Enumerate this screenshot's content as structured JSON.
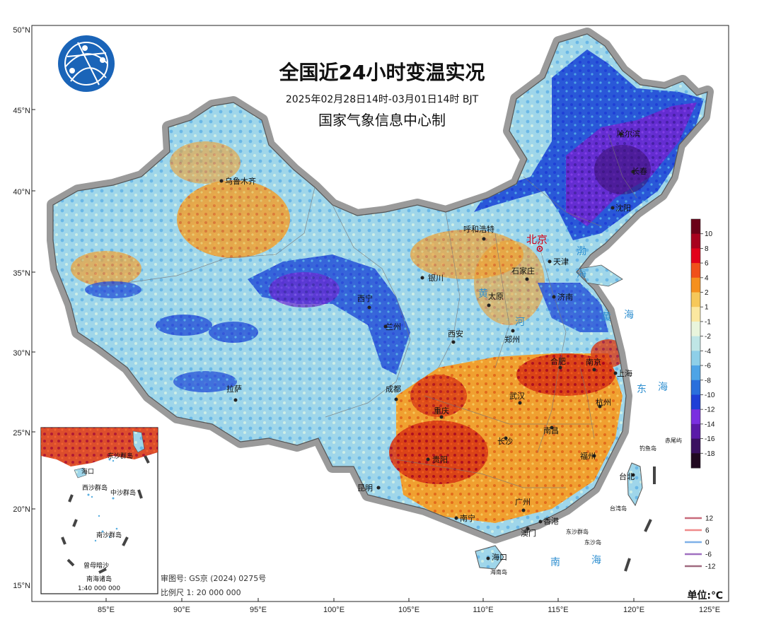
{
  "title": "全国近24小时变温实况",
  "subtitle": "2025年02月28日14时-03月01日14时 BJT",
  "maker": "国家气象信息中心制",
  "unit": "单位:℃",
  "approval": "审图号: GS京 (2024) 0275号",
  "scale": "比例尺 1: 20 000 000",
  "inset": {
    "title": "南海诸岛",
    "scale": "1:40 000 000",
    "labels": [
      "东沙群岛",
      "西沙群岛",
      "中沙群岛",
      "南沙群岛",
      "曾母暗沙",
      "海口"
    ]
  },
  "lat_labels": [
    "50°N",
    "45°N",
    "40°N",
    "35°N",
    "30°N",
    "25°N",
    "20°N",
    "15°N"
  ],
  "lon_labels": [
    "85°E",
    "90°E",
    "95°E",
    "100°E",
    "105°E",
    "110°E",
    "115°E",
    "120°E",
    "125°E"
  ],
  "capital": "北京",
  "cities": [
    "乌鲁木齐",
    "哈尔滨",
    "长春",
    "沈阳",
    "呼和浩特",
    "天津",
    "石家庄",
    "银川",
    "太原",
    "济南",
    "西宁",
    "兰州",
    "西安",
    "郑州",
    "合肥",
    "南京",
    "上海",
    "拉萨",
    "成都",
    "武汉",
    "杭州",
    "重庆",
    "南昌",
    "长沙",
    "贵阳",
    "福州",
    "台北",
    "昆明",
    "广州",
    "南宁",
    "香港",
    "澳门",
    "海口"
  ],
  "seas": [
    "渤",
    "海",
    "黄",
    "海",
    "东",
    "海",
    "南",
    "海"
  ],
  "rivers": [
    "黄",
    "河"
  ],
  "islands": [
    "钓鱼岛",
    "赤尾屿",
    "台湾岛",
    "东沙群岛",
    "东沙岛",
    "海南岛"
  ],
  "legend": {
    "ticks": [
      "10",
      "8",
      "6",
      "4",
      "2",
      "1",
      "-1",
      "-2",
      "-4",
      "-6",
      "-8",
      "-10",
      "-12",
      "-14",
      "-16",
      "-18"
    ],
    "colors": [
      "#6b0018",
      "#a8001e",
      "#e2001a",
      "#f0501a",
      "#f5901e",
      "#f6c85a",
      "#fbe8a0",
      "#e9f5dc",
      "#bfe6e6",
      "#8ecfe8",
      "#4ea4e6",
      "#2a6fdc",
      "#1f3fd6",
      "#7a2fe0",
      "#5a1aa8",
      "#3a1060",
      "#200820"
    ]
  },
  "contour_legend": {
    "items": [
      {
        "label": "12",
        "color": "#c86a7a"
      },
      {
        "label": "6",
        "color": "#f08a8a"
      },
      {
        "label": "0",
        "color": "#7fb0e8"
      },
      {
        "label": "-6",
        "color": "#a070c0"
      },
      {
        "label": "-12",
        "color": "#a06a80"
      }
    ]
  }
}
